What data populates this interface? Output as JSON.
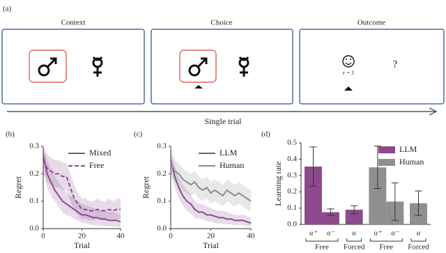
{
  "panel_a": {
    "label": "(a)",
    "steps": [
      {
        "title": "Context"
      },
      {
        "title": "Choice"
      },
      {
        "title": "Outcome",
        "reward": "r = 1",
        "unknown": "?"
      }
    ],
    "timeline": "Single trial"
  },
  "chart_data": [
    {
      "type": "line",
      "label": "(b)",
      "xlabel": "Trial",
      "ylabel": "Regret",
      "xlim": [
        0,
        40
      ],
      "ylim": [
        0,
        0.3
      ],
      "xticks": [
        0,
        20,
        40
      ],
      "yticks": [
        {
          "value": 0,
          "label": "0.0"
        },
        0.1,
        0.2,
        0.3
      ],
      "legend": "upper right",
      "x": [
        0,
        2,
        4,
        6,
        8,
        10,
        12,
        14,
        16,
        18,
        20,
        22,
        24,
        26,
        28,
        30,
        32,
        34,
        36,
        38,
        40
      ],
      "series": [
        {
          "name": "Mixed",
          "color": "#8a4b8f",
          "linestyle": "solid",
          "values": [
            0.27,
            0.2,
            0.17,
            0.14,
            0.12,
            0.1,
            0.09,
            0.08,
            0.07,
            0.06,
            0.05,
            0.05,
            0.045,
            0.04,
            0.04,
            0.035,
            0.035,
            0.03,
            0.03,
            0.03,
            0.025
          ],
          "lower": [
            0.23,
            0.15,
            0.12,
            0.1,
            0.08,
            0.06,
            0.05,
            0.045,
            0.035,
            0.03,
            0.02,
            0.02,
            0.015,
            0.012,
            0.012,
            0.01,
            0.01,
            0.008,
            0.008,
            0.008,
            0.005
          ],
          "upper": [
            0.3,
            0.25,
            0.22,
            0.19,
            0.17,
            0.15,
            0.13,
            0.12,
            0.11,
            0.1,
            0.09,
            0.085,
            0.08,
            0.075,
            0.07,
            0.065,
            0.065,
            0.06,
            0.06,
            0.055,
            0.05
          ]
        },
        {
          "name": "Free",
          "color": "#8a4b8f",
          "linestyle": "dashed",
          "values": [
            0.25,
            0.22,
            0.21,
            0.2,
            0.2,
            0.19,
            0.19,
            0.15,
            0.11,
            0.09,
            0.07,
            0.07,
            0.065,
            0.065,
            0.07,
            0.065,
            0.065,
            0.07,
            0.065,
            0.07,
            0.07
          ],
          "lower": [
            0.2,
            0.17,
            0.16,
            0.15,
            0.15,
            0.14,
            0.14,
            0.1,
            0.07,
            0.05,
            0.035,
            0.035,
            0.03,
            0.03,
            0.035,
            0.03,
            0.03,
            0.035,
            0.03,
            0.035,
            0.035
          ],
          "upper": [
            0.3,
            0.27,
            0.26,
            0.25,
            0.25,
            0.24,
            0.24,
            0.2,
            0.16,
            0.13,
            0.11,
            0.11,
            0.1,
            0.1,
            0.11,
            0.1,
            0.1,
            0.11,
            0.1,
            0.11,
            0.11
          ]
        }
      ]
    },
    {
      "type": "line",
      "label": "(c)",
      "xlabel": "Trial",
      "ylabel": "Regret",
      "xlim": [
        0,
        40
      ],
      "ylim": [
        0,
        0.3
      ],
      "xticks": [
        0,
        20,
        40
      ],
      "yticks": [
        {
          "value": 0,
          "label": "0.0"
        },
        0.1,
        0.2,
        0.3
      ],
      "legend": "upper right",
      "x": [
        0,
        2,
        4,
        6,
        8,
        10,
        12,
        14,
        16,
        18,
        20,
        22,
        24,
        26,
        28,
        30,
        32,
        34,
        36,
        38,
        40
      ],
      "series": [
        {
          "name": "LLM",
          "color": "#8a4b8f",
          "linestyle": "solid",
          "values": [
            0.25,
            0.19,
            0.15,
            0.12,
            0.1,
            0.09,
            0.07,
            0.06,
            0.06,
            0.05,
            0.05,
            0.045,
            0.04,
            0.04,
            0.035,
            0.035,
            0.03,
            0.03,
            0.03,
            0.025,
            0.02
          ],
          "lower": [
            0.21,
            0.15,
            0.11,
            0.085,
            0.065,
            0.055,
            0.04,
            0.035,
            0.035,
            0.025,
            0.025,
            0.02,
            0.018,
            0.018,
            0.015,
            0.015,
            0.012,
            0.012,
            0.012,
            0.01,
            0.008
          ],
          "upper": [
            0.29,
            0.23,
            0.19,
            0.16,
            0.14,
            0.125,
            0.1,
            0.09,
            0.09,
            0.08,
            0.075,
            0.07,
            0.065,
            0.065,
            0.06,
            0.055,
            0.05,
            0.05,
            0.05,
            0.045,
            0.04
          ]
        },
        {
          "name": "Human",
          "color": "#8c8c8c",
          "linestyle": "solid",
          "values": [
            0.24,
            0.21,
            0.2,
            0.18,
            0.17,
            0.16,
            0.17,
            0.15,
            0.14,
            0.15,
            0.13,
            0.14,
            0.13,
            0.12,
            0.14,
            0.13,
            0.12,
            0.13,
            0.12,
            0.11,
            0.1
          ],
          "lower": [
            0.2,
            0.17,
            0.16,
            0.14,
            0.13,
            0.12,
            0.13,
            0.11,
            0.1,
            0.11,
            0.09,
            0.1,
            0.09,
            0.08,
            0.1,
            0.09,
            0.08,
            0.09,
            0.08,
            0.07,
            0.06
          ],
          "upper": [
            0.28,
            0.25,
            0.24,
            0.22,
            0.21,
            0.2,
            0.21,
            0.19,
            0.18,
            0.19,
            0.17,
            0.18,
            0.17,
            0.16,
            0.18,
            0.17,
            0.16,
            0.17,
            0.16,
            0.15,
            0.14
          ]
        }
      ]
    },
    {
      "type": "bar",
      "label": "(d)",
      "ylabel": "Learning rate",
      "ylim": [
        0,
        0.5
      ],
      "yticks": [
        {
          "value": 0,
          "label": "0.0"
        },
        0.1,
        0.2,
        0.3,
        0.4,
        0.5
      ],
      "legend": "upper right",
      "groups": [
        {
          "name": "Free",
          "categories": [
            "α⁺",
            "α⁻"
          ]
        },
        {
          "name": "Forced",
          "categories": [
            "α"
          ]
        },
        {
          "name": "Free",
          "categories": [
            "α⁺",
            "α⁻"
          ]
        },
        {
          "name": "Forced",
          "categories": [
            "α"
          ]
        }
      ],
      "series": [
        {
          "name": "LLM",
          "color": "#8c4a8c",
          "values": [
            0.355,
            0.075,
            0.09,
            null,
            null,
            null
          ],
          "errors": [
            0.12,
            0.02,
            0.025,
            null,
            null,
            null
          ]
        },
        {
          "name": "Human",
          "color": "#8f8f8f",
          "values": [
            null,
            null,
            null,
            0.35,
            0.14,
            0.13
          ],
          "errors": [
            null,
            null,
            null,
            0.13,
            0.115,
            0.075
          ]
        }
      ]
    }
  ]
}
